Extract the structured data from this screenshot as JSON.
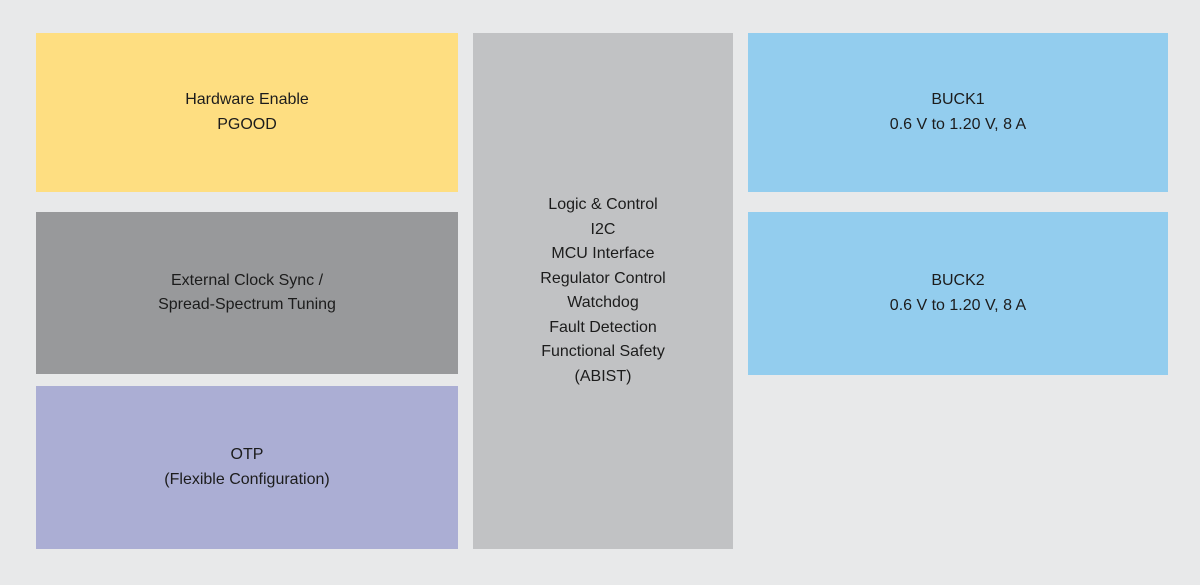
{
  "diagram": {
    "background_color": "#e8e9ea",
    "text_color": "#1c1c1c",
    "blocks": {
      "hardware_enable": {
        "color": "#fede81",
        "lines": [
          "Hardware Enable",
          "PGOOD"
        ]
      },
      "clock_sync": {
        "color": "#98999b",
        "lines": [
          "External Clock Sync /",
          "Spread-Spectrum Tuning"
        ]
      },
      "otp": {
        "color": "#abaed4",
        "lines": [
          "OTP",
          "(Flexible Configuration)"
        ]
      },
      "logic_control": {
        "color": "#c1c2c4",
        "lines": [
          "Logic & Control",
          "I2C",
          "MCU Interface",
          "Regulator Control",
          "Watchdog",
          "Fault Detection",
          "Functional Safety",
          "(ABIST)"
        ]
      },
      "buck1": {
        "color": "#93cdee",
        "lines": [
          "BUCK1",
          "0.6 V to 1.20 V, 8 A"
        ]
      },
      "buck2": {
        "color": "#93cdee",
        "lines": [
          "BUCK2",
          "0.6 V to 1.20 V, 8 A"
        ]
      }
    }
  }
}
